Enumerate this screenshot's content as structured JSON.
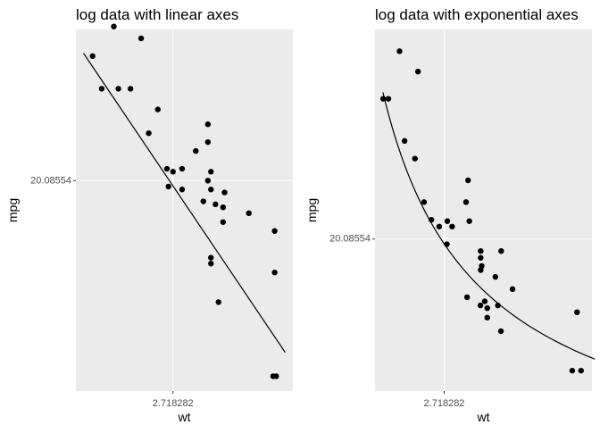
{
  "chart_data": [
    {
      "type": "scatter",
      "title": "log data with linear axes",
      "xlabel": "wt",
      "ylabel": "mpg",
      "x_scale": "log",
      "y_scale": "log",
      "xlim_ln": [
        0.36,
        1.79
      ],
      "ylim_ln": [
        2.29,
        3.51
      ],
      "x_tick": {
        "ln": 1.0,
        "label": "2.718282"
      },
      "y_tick": {
        "ln": 3.0,
        "label": "20.08554"
      },
      "grid": true,
      "line": {
        "type": "fitted",
        "from": [
          0.41,
          3.43
        ],
        "to": [
          1.74,
          2.42
        ]
      },
      "points_ln": [
        [
          0.96,
          3.04
        ],
        [
          1.06,
          3.04
        ],
        [
          0.84,
          3.16
        ],
        [
          1.15,
          3.1
        ],
        [
          1.23,
          3.0
        ],
        [
          1.2,
          2.93
        ],
        [
          1.25,
          3.03
        ],
        [
          1.33,
          2.91
        ],
        [
          1.23,
          3.19
        ],
        [
          1.23,
          3.13
        ],
        [
          1.33,
          2.86
        ],
        [
          1.28,
          2.92
        ],
        [
          1.5,
          2.89
        ],
        [
          1.67,
          2.83
        ],
        [
          1.68,
          2.34
        ],
        [
          1.66,
          2.34
        ],
        [
          1.67,
          2.69
        ],
        [
          0.79,
          3.48
        ],
        [
          0.47,
          3.42
        ],
        [
          0.61,
          3.52
        ],
        [
          0.9,
          3.24
        ],
        [
          1.25,
          2.74
        ],
        [
          1.25,
          2.72
        ],
        [
          1.3,
          2.59
        ],
        [
          1.34,
          2.96
        ],
        [
          0.53,
          3.31
        ],
        [
          0.64,
          3.31
        ],
        [
          0.72,
          3.31
        ],
        [
          0.97,
          2.98
        ],
        [
          1.06,
          2.97
        ],
        [
          1.25,
          2.97
        ],
        [
          1.0,
          3.03
        ]
      ]
    },
    {
      "type": "scatter",
      "title": "log data with exponential axes",
      "xlabel": "wt",
      "ylabel": "mpg",
      "x_scale": "linear",
      "y_scale": "linear",
      "xlim": [
        1.35,
        5.64
      ],
      "ylim": [
        8.9,
        35.5
      ],
      "x_tick": {
        "value": 2.718282,
        "label": "2.718282"
      },
      "y_tick": {
        "value": 20.08554,
        "label": "20.08554"
      },
      "grid": true,
      "line": {
        "type": "fitted"
      },
      "points": [
        [
          2.62,
          21.0
        ],
        [
          2.875,
          21.0
        ],
        [
          2.32,
          22.8
        ],
        [
          3.215,
          21.4
        ],
        [
          3.44,
          18.7
        ],
        [
          3.46,
          18.1
        ],
        [
          3.57,
          14.3
        ],
        [
          3.19,
          24.4
        ],
        [
          3.15,
          22.8
        ],
        [
          3.44,
          19.2
        ],
        [
          3.44,
          17.8
        ],
        [
          4.07,
          16.4
        ],
        [
          3.73,
          17.3
        ],
        [
          3.78,
          15.2
        ],
        [
          5.25,
          10.4
        ],
        [
          5.424,
          10.4
        ],
        [
          5.345,
          14.7
        ],
        [
          2.2,
          32.4
        ],
        [
          1.615,
          30.4
        ],
        [
          1.835,
          33.9
        ],
        [
          2.465,
          21.5
        ],
        [
          3.52,
          15.5
        ],
        [
          3.435,
          15.2
        ],
        [
          3.84,
          13.3
        ],
        [
          3.845,
          19.2
        ],
        [
          1.935,
          27.3
        ],
        [
          2.14,
          26.0
        ],
        [
          1.513,
          30.4
        ],
        [
          3.17,
          15.8
        ],
        [
          2.77,
          19.7
        ],
        [
          3.57,
          15.0
        ],
        [
          2.78,
          21.4
        ]
      ]
    }
  ]
}
